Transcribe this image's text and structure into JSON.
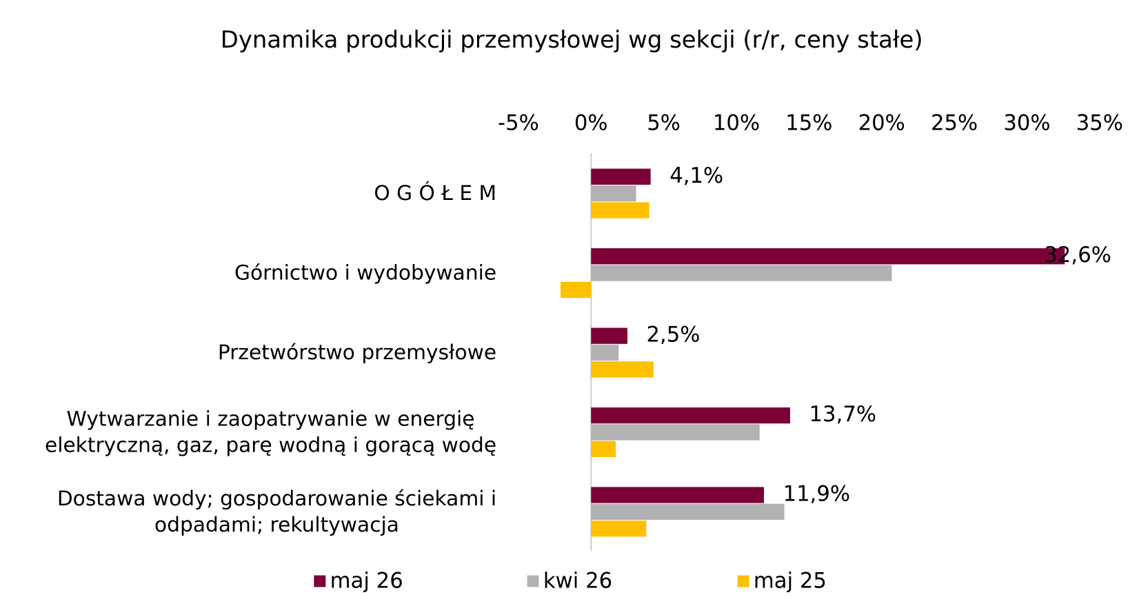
{
  "chart_data": {
    "type": "bar",
    "orientation": "horizontal",
    "title": "Dynamika produkcji przemysłowej wg sekcji (r/r, ceny stałe)",
    "categories": [
      "O G Ó Ł E M",
      "Górnictwo i wydobywanie",
      "Przetwórstwo przemysłowe",
      "Wytwarzanie i zaopatrywanie w energię\nelektryczną, gaz, parę wodną i gorącą wodę",
      "Dostawa wody; gospodarowanie ściekami i\nodpadami; rekultywacja"
    ],
    "series": [
      {
        "name": "maj 26",
        "color": "#7b0038",
        "values": [
          4.1,
          32.6,
          2.5,
          13.7,
          11.9
        ],
        "value_labels": [
          "4,1%",
          "32,6%",
          "2,5%",
          "13,7%",
          "11,9%"
        ]
      },
      {
        "name": "kwi 26",
        "color": "#b2b2b2",
        "values": [
          3.1,
          20.7,
          1.9,
          11.6,
          13.3
        ]
      },
      {
        "name": "maj 25",
        "color": "#ffc000",
        "values": [
          4.0,
          -2.1,
          4.3,
          1.7,
          3.8
        ]
      }
    ],
    "xlim": [
      -5,
      35
    ],
    "xticks": [
      {
        "value": -5,
        "label": "-5%"
      },
      {
        "value": 0,
        "label": "0%"
      },
      {
        "value": 5,
        "label": "5%"
      },
      {
        "value": 10,
        "label": "10%"
      },
      {
        "value": 15,
        "label": "15%"
      },
      {
        "value": 20,
        "label": "20%"
      },
      {
        "value": 25,
        "label": "25%"
      },
      {
        "value": 30,
        "label": "30%"
      },
      {
        "value": 35,
        "label": "35%"
      }
    ],
    "grid": false,
    "legend": "bottom"
  }
}
